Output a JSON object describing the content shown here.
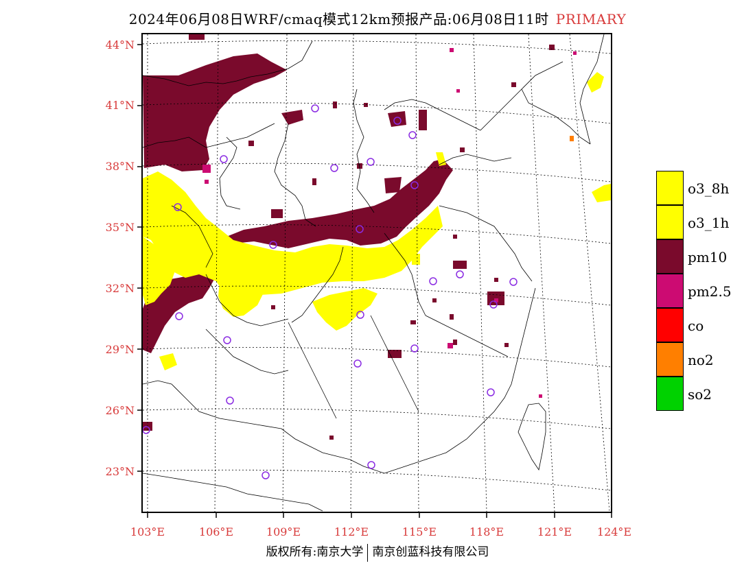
{
  "title": {
    "main": "2024年06月08日WRF/cmaq模式12km预报产品:06月08日11时",
    "tag": "PRIMARY"
  },
  "latitudes": [
    "44°N",
    "41°N",
    "38°N",
    "35°N",
    "32°N",
    "29°N",
    "26°N",
    "23°N"
  ],
  "longitudes": [
    "103°E",
    "106°E",
    "109°E",
    "112°E",
    "115°E",
    "118°E",
    "121°E",
    "124°E"
  ],
  "legend": [
    {
      "label": "o3_8h",
      "color": "#ffff00"
    },
    {
      "label": "o3_1h",
      "color": "#ffff00"
    },
    {
      "label": "pm10",
      "color": "#7a0a2c"
    },
    {
      "label": "pm2.5",
      "color": "#cc0b72"
    },
    {
      "label": "co",
      "color": "#ff0000"
    },
    {
      "label": "no2",
      "color": "#ff7f00"
    },
    {
      "label": "so2",
      "color": "#00d200"
    }
  ],
  "footer": {
    "left": "版权所有:南京大学",
    "right": "南京创蓝科技有限公司"
  },
  "colors": {
    "o3": "#ffff00",
    "pm10": "#7a0a2c",
    "pm25": "#cc0b72",
    "no2": "#ff7f00",
    "station": "#8a2be2",
    "label": "#d83a3a"
  },
  "stations": [
    [
      935,
      95
    ],
    [
      459,
      158
    ],
    [
      579,
      176
    ],
    [
      601,
      197
    ],
    [
      326,
      232
    ],
    [
      487,
      245
    ],
    [
      540,
      236
    ],
    [
      604,
      270
    ],
    [
      259,
      302
    ],
    [
      524,
      334
    ],
    [
      398,
      357
    ],
    [
      670,
      400
    ],
    [
      631,
      410
    ],
    [
      748,
      411
    ],
    [
      261,
      461
    ],
    [
      525,
      459
    ],
    [
      719,
      444
    ],
    [
      331,
      496
    ],
    [
      604,
      508
    ],
    [
      521,
      530
    ],
    [
      715,
      572
    ],
    [
      335,
      584
    ],
    [
      213,
      627
    ],
    [
      387,
      693
    ],
    [
      541,
      678
    ]
  ]
}
